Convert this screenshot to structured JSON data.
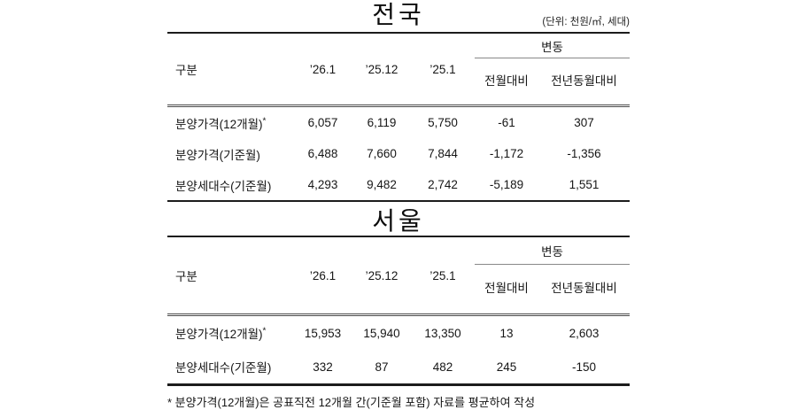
{
  "page": {
    "unit_note": "(단위: 천원/㎡, 세대)",
    "footnote": "* 분양가격(12개월)은 공표직전 12개월 간(기준월 포함) 자료를 평균하여 작성"
  },
  "tables": [
    {
      "title": "전국",
      "header": {
        "row_label": "구분",
        "periods": [
          "’26.1",
          "’25.12",
          "’25.1"
        ],
        "change_group": "변동",
        "change_sub": [
          "전월대비",
          "전년동월대비"
        ]
      },
      "rows": [
        {
          "label": "분양가격(12개월)",
          "sup": "*",
          "values": [
            "6,057",
            "6,119",
            "5,750",
            "-61",
            "307"
          ]
        },
        {
          "label": "분양가격(기준월)",
          "values": [
            "6,488",
            "7,660",
            "7,844",
            "-1,172",
            "-1,356"
          ]
        },
        {
          "label": "분양세대수(기준월)",
          "values": [
            "4,293",
            "9,482",
            "2,742",
            "-5,189",
            "1,551"
          ]
        }
      ]
    },
    {
      "title": "서울",
      "header": {
        "row_label": "구분",
        "periods": [
          "’26.1",
          "’25.12",
          "’25.1"
        ],
        "change_group": "변동",
        "change_sub": [
          "전월대비",
          "전년동월대비"
        ]
      },
      "rows": [
        {
          "label": "분양가격(12개월)",
          "sup": "*",
          "values": [
            "15,953",
            "15,940",
            "13,350",
            "13",
            "2,603"
          ]
        },
        {
          "label": "분양세대수(기준월)",
          "values": [
            "332",
            "87",
            "482",
            "245",
            "-150"
          ]
        }
      ]
    }
  ]
}
